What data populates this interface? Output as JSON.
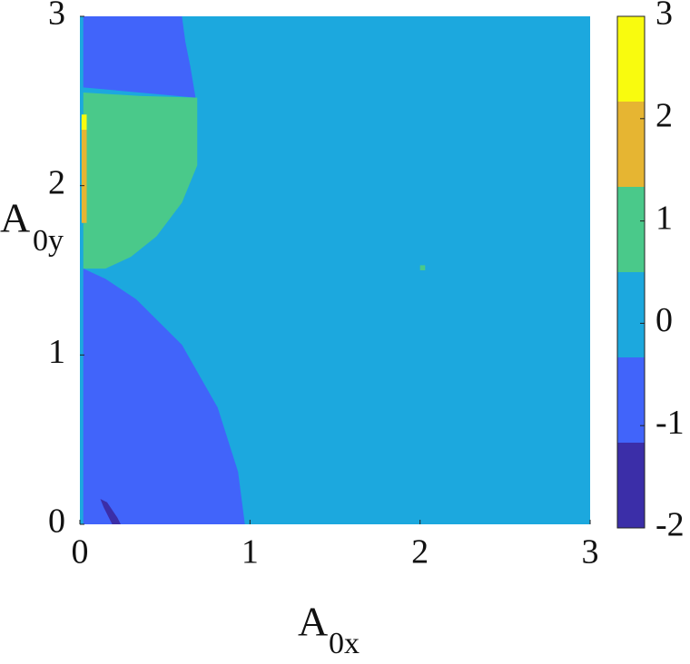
{
  "chart_data": {
    "type": "region_map",
    "xlabel": {
      "main": "A",
      "sub": "0x"
    },
    "ylabel": {
      "main": "A",
      "sub": "0y"
    },
    "xlim": [
      0,
      3
    ],
    "ylim": [
      0,
      3
    ],
    "xticks": [
      0,
      1,
      2,
      3
    ],
    "yticks": [
      0,
      1,
      2,
      3
    ],
    "clim": [
      -2,
      3
    ],
    "cticks": [
      -2,
      -1,
      0,
      1,
      2,
      3
    ],
    "colors": [
      "#3b2ea8",
      "#4164fa",
      "#1ca8de",
      "#4ac98a",
      "#e6b532",
      "#f9fb0e"
    ],
    "regions": [
      {
        "value": 0,
        "x": [
          0,
          3,
          3,
          0
        ],
        "y": [
          0,
          0,
          3,
          3
        ]
      },
      {
        "value": -1,
        "x": [
          0.02,
          0.97,
          0.93,
          0.81,
          0.6,
          0.33,
          0.15,
          0.02
        ],
        "y": [
          0,
          0,
          0.31,
          0.69,
          1.06,
          1.33,
          1.45,
          1.51
        ]
      },
      {
        "value": -1,
        "x": [
          0.02,
          0.6,
          0.62,
          0.65,
          0.68,
          0.02
        ],
        "y": [
          3,
          3,
          2.85,
          2.7,
          2.52,
          2.58
        ]
      },
      {
        "value": 1,
        "x": [
          0.02,
          0.35,
          0.69,
          0.69,
          0.6,
          0.45,
          0.3,
          0.15,
          0.02
        ],
        "y": [
          2.55,
          2.53,
          2.52,
          2.12,
          1.9,
          1.7,
          1.58,
          1.51,
          1.51
        ]
      },
      {
        "value": 2,
        "x": [
          0.01,
          0.04,
          0.04,
          0.01
        ],
        "y": [
          1.78,
          1.78,
          2.4,
          2.4
        ]
      },
      {
        "value": 3,
        "x": [
          0.01,
          0.04,
          0.04,
          0.01
        ],
        "y": [
          2.33,
          2.33,
          2.42,
          2.42
        ]
      },
      {
        "value": -2,
        "x": [
          0.12,
          0.16,
          0.22,
          0.24,
          0.19,
          0.14
        ],
        "y": [
          0.15,
          0.13,
          0.04,
          0,
          0,
          0.1
        ]
      },
      {
        "value": 1,
        "x": [
          2.0,
          2.03,
          2.03,
          2.0
        ],
        "y": [
          1.5,
          1.5,
          1.53,
          1.53
        ]
      }
    ]
  }
}
